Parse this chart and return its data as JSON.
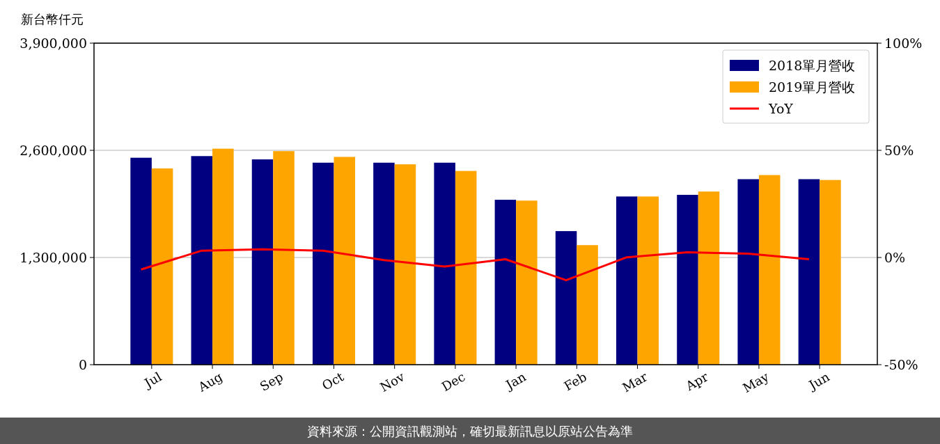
{
  "chart_data": {
    "type": "bar",
    "ylabel": "新台幣仟元",
    "categories": [
      "Jul",
      "Aug",
      "Sep",
      "Oct",
      "Nov",
      "Dec",
      "Jan",
      "Feb",
      "Mar",
      "Apr",
      "May",
      "Jun"
    ],
    "series": [
      {
        "name": "2018單月營收",
        "color": "#000080",
        "values": [
          2510000,
          2530000,
          2490000,
          2450000,
          2450000,
          2450000,
          2000000,
          1620000,
          2040000,
          2060000,
          2250000,
          2250000
        ]
      },
      {
        "name": "2019單月營收",
        "color": "#ffa500",
        "values": [
          2380000,
          2620000,
          2590000,
          2520000,
          2430000,
          2350000,
          1990000,
          1450000,
          2040000,
          2100000,
          2300000,
          2240000
        ]
      },
      {
        "name": "YoY",
        "type": "line",
        "axis": "y2",
        "color": "#ff0000",
        "values": [
          -5.6,
          3.2,
          3.8,
          3.2,
          -1.2,
          -4.2,
          -0.8,
          -10.6,
          0.1,
          2.4,
          1.8,
          -0.8
        ]
      }
    ],
    "ylim": [
      0,
      3900000
    ],
    "yticks": [
      {
        "value": 0,
        "label": "0"
      },
      {
        "value": 1300000,
        "label": "1,300,000"
      },
      {
        "value": 2600000,
        "label": "2,600,000"
      },
      {
        "value": 3900000,
        "label": "3,900,000"
      }
    ],
    "y2lim": [
      -50,
      100
    ],
    "y2ticks": [
      {
        "value": -50,
        "label": "-50%"
      },
      {
        "value": 0,
        "label": "0%"
      },
      {
        "value": 50,
        "label": "50%"
      },
      {
        "value": 100,
        "label": "100%"
      }
    ],
    "grid": "y",
    "legend": "top right",
    "annotations": [
      "資料來源：公開資訊觀測站，確切最新訊息以原站公告為準"
    ]
  }
}
